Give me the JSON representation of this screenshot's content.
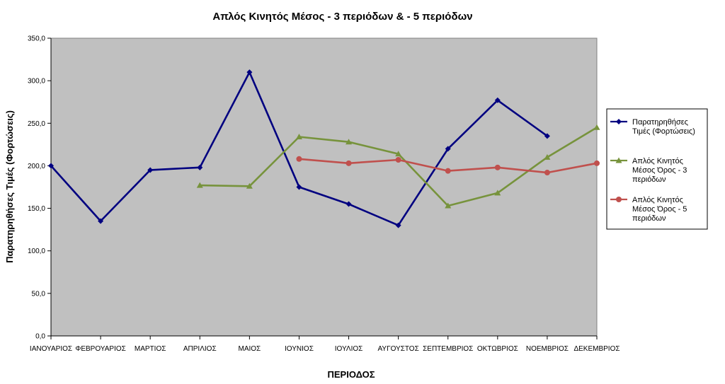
{
  "chart_data": {
    "type": "line",
    "title": "Απλός Κινητός Μέσος - 3 περιόδων & - 5 περιόδων",
    "xlabel": "ΠΕΡΙΟΔΟΣ",
    "ylabel": "Παρατηρηθήσες Τιμές (Φορτώσεις)",
    "categories": [
      "ΙΑΝΟΥΑΡΙΟΣ",
      "ΦΕΒΡΟΥΑΡΙΟΣ",
      "ΜΑΡΤΙΟΣ",
      "ΑΠΡΙΛΙΟΣ",
      "ΜΑΙΟΣ",
      "ΙΟΥΝΙΟΣ",
      "ΙΟΥΛΙΟΣ",
      "ΑΥΓΟΥΣΤΟΣ",
      "ΣΕΠΤΕΜΒΡΙΟΣ",
      "ΟΚΤΩΒΡΙΟΣ",
      "ΝΟΕΜΒΡΙΟΣ",
      "ΔΕΚΕΜΒΡΙΟΣ"
    ],
    "ylim": [
      0,
      350
    ],
    "yticks": [
      "0,0",
      "50,0",
      "100,0",
      "150,0",
      "200,0",
      "250,0",
      "300,0",
      "350,0"
    ],
    "grid": false,
    "legend_position": "right",
    "plot_background": "#c0c0c0",
    "series": [
      {
        "legend_lines": [
          "Παρατηρηθήσες",
          "Τιμές (Φορτώσεις)"
        ],
        "color": "#000080",
        "marker": "diamond",
        "values": [
          200,
          135,
          195,
          198,
          310,
          175,
          155,
          130,
          220,
          277,
          235,
          null
        ]
      },
      {
        "legend_lines": [
          "Απλός Κινητός",
          "Μέσος Όρος - 3",
          "περιόδων"
        ],
        "color": "#77933c",
        "marker": "triangle",
        "values": [
          null,
          null,
          null,
          177,
          176,
          234,
          228,
          214,
          153,
          168,
          210,
          245
        ]
      },
      {
        "legend_lines": [
          "Απλός Κινητός",
          "Μέσος Όρος - 5",
          "περιόδων"
        ],
        "color": "#c0504d",
        "marker": "circle",
        "values": [
          null,
          null,
          null,
          null,
          null,
          208,
          203,
          207,
          194,
          198,
          192,
          203
        ]
      }
    ]
  }
}
